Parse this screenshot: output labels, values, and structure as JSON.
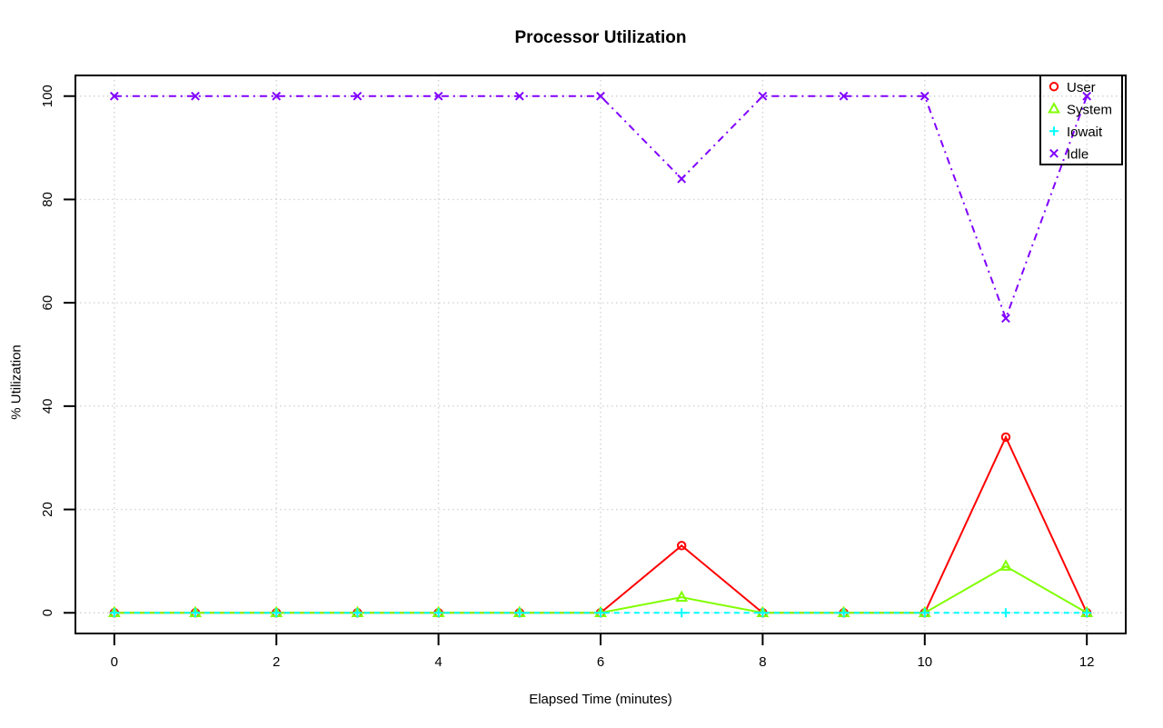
{
  "chart_data": {
    "type": "line",
    "title": "Processor Utilization",
    "xlabel": "Elapsed Time (minutes)",
    "ylabel": "% Utilization",
    "x": [
      0,
      1,
      2,
      3,
      4,
      5,
      6,
      7,
      8,
      9,
      10,
      11,
      12
    ],
    "xticks": [
      0,
      2,
      4,
      6,
      8,
      10,
      12
    ],
    "yticks": [
      0,
      20,
      40,
      60,
      80,
      100
    ],
    "xlim": [
      0,
      12
    ],
    "ylim": [
      0,
      100
    ],
    "grid": "dotted light-gray at every tick",
    "legend_position": "topright",
    "legend_has_box": true,
    "series": [
      {
        "name": "User",
        "color": "#FF0000",
        "marker": "circle",
        "dash": "solid",
        "values": [
          0,
          0,
          0,
          0,
          0,
          0,
          0,
          13,
          0,
          0,
          0,
          34,
          0
        ]
      },
      {
        "name": "System",
        "color": "#80FF00",
        "marker": "triangle",
        "dash": "solid",
        "values": [
          0,
          0,
          0,
          0,
          0,
          0,
          0,
          3,
          0,
          0,
          0,
          9,
          0
        ]
      },
      {
        "name": "Iowait",
        "color": "#00FFFF",
        "marker": "plus",
        "dash": "dashed",
        "values": [
          0,
          0,
          0,
          0,
          0,
          0,
          0,
          0,
          0,
          0,
          0,
          0,
          0
        ]
      },
      {
        "name": "Idle",
        "color": "#8000FF",
        "marker": "x",
        "dash": "dotdash",
        "values": [
          100,
          100,
          100,
          100,
          100,
          100,
          100,
          84,
          100,
          100,
          100,
          57,
          100
        ]
      }
    ],
    "colors": {
      "frame": "#000000",
      "grid": "#d3d3d3",
      "text": "#000000",
      "background": "#ffffff"
    }
  }
}
